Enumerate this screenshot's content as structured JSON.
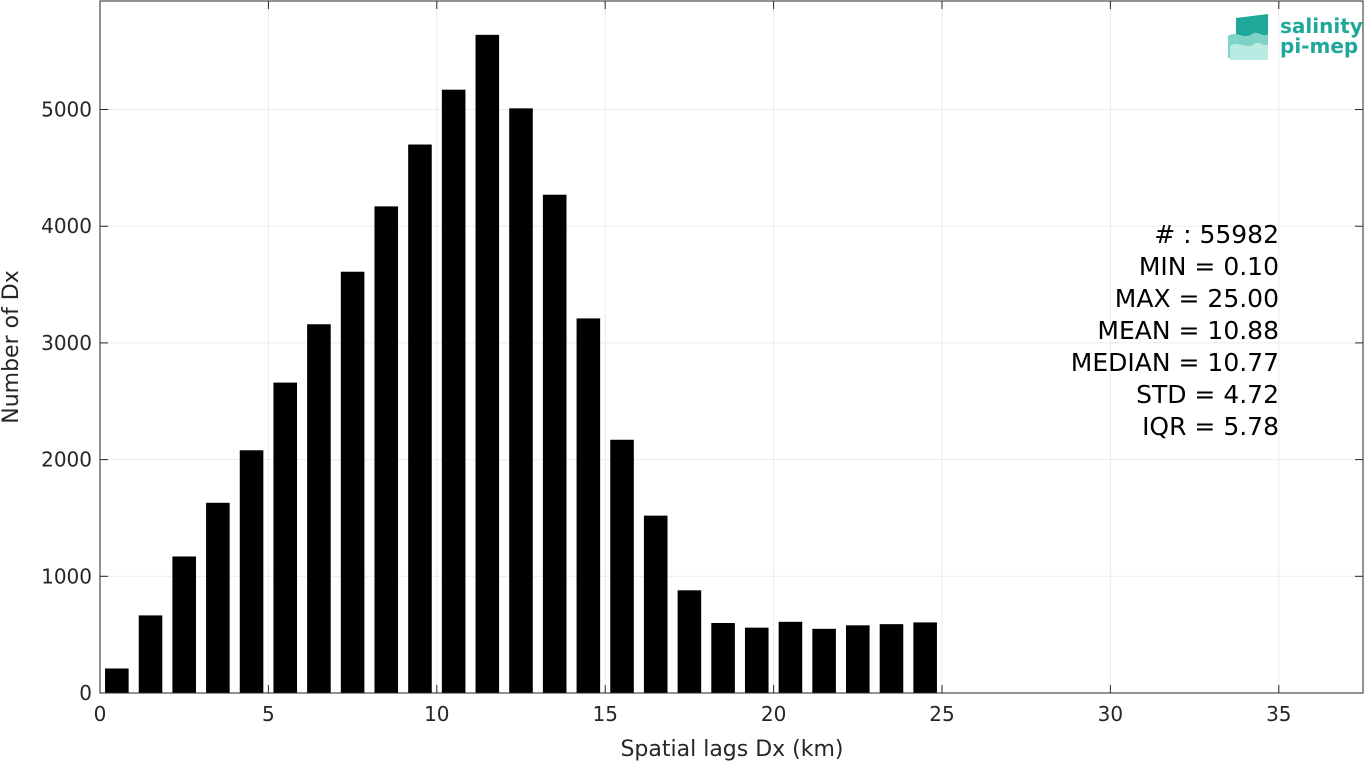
{
  "chart_data": {
    "type": "bar",
    "x": [
      0.5,
      1.5,
      2.5,
      3.5,
      4.5,
      5.5,
      6.5,
      7.5,
      8.5,
      9.5,
      10.5,
      11.5,
      12.5,
      13.5,
      14.5,
      15.5,
      16.5,
      17.5,
      18.5,
      19.5,
      20.5,
      21.5,
      22.5,
      23.5,
      24.5
    ],
    "values": [
      210,
      665,
      1170,
      1630,
      2080,
      2660,
      3160,
      3610,
      4170,
      4700,
      5170,
      5640,
      5010,
      4270,
      3210,
      2170,
      1520,
      880,
      600,
      560,
      610,
      550,
      580,
      590,
      605
    ],
    "xlabel": "Spatial lags Dx (km)",
    "ylabel": "Number of Dx",
    "xlim": [
      0,
      37.5
    ],
    "ylim": [
      0,
      5930
    ],
    "xticks": [
      0,
      5,
      10,
      15,
      20,
      25,
      30,
      35
    ],
    "yticks": [
      0,
      1000,
      2000,
      3000,
      4000,
      5000
    ],
    "grid": true,
    "bar_color": "#000000",
    "grid_color": "#ebebeb",
    "annotations": [
      "# : 55982",
      "MIN = 0.10",
      "MAX =  25.00",
      "MEAN = 10.88",
      "MEDIAN = 10.77",
      "STD = 4.72",
      "IQR = 5.78"
    ]
  },
  "logo": {
    "line1": "salinity",
    "line2": "pi-mep",
    "color": "#1fa89a"
  }
}
